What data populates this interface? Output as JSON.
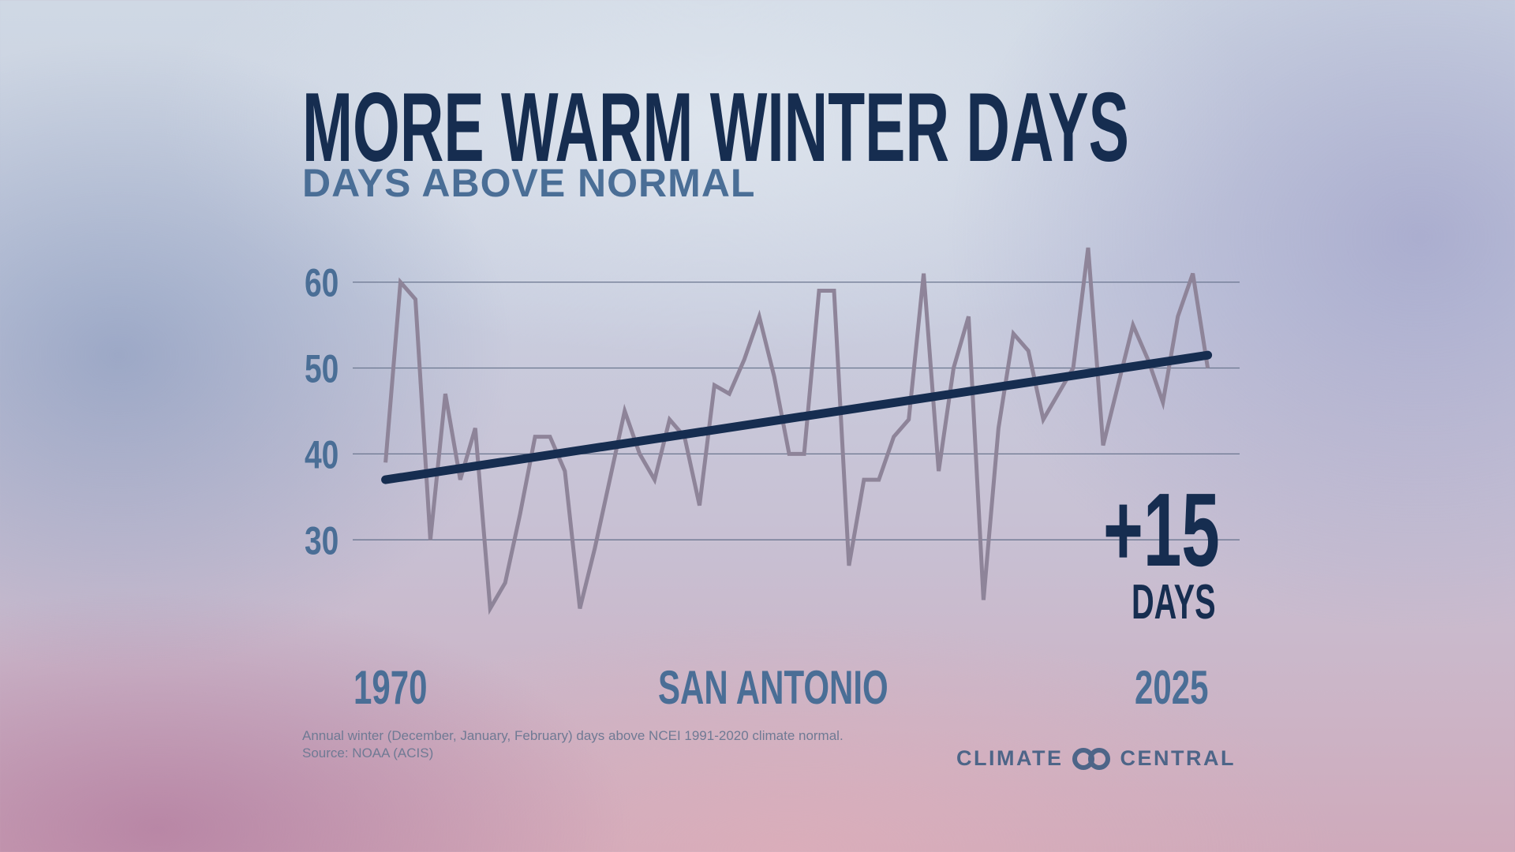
{
  "header": {
    "title": "MORE WARM WINTER DAYS",
    "subtitle": "DAYS ABOVE NORMAL"
  },
  "chart_data": {
    "type": "line",
    "title": "MORE WARM WINTER DAYS",
    "subtitle": "DAYS ABOVE NORMAL",
    "location": "SAN ANTONIO",
    "xlabel": "",
    "ylabel": "",
    "x_start_label": "1970",
    "x_end_label": "2025",
    "ylim": [
      20,
      65
    ],
    "yticks": [
      30,
      40,
      50,
      60
    ],
    "grid": true,
    "x": [
      1970,
      1971,
      1972,
      1973,
      1974,
      1975,
      1976,
      1977,
      1978,
      1979,
      1980,
      1981,
      1982,
      1983,
      1984,
      1985,
      1986,
      1987,
      1988,
      1989,
      1990,
      1991,
      1992,
      1993,
      1994,
      1995,
      1996,
      1997,
      1998,
      1999,
      2000,
      2001,
      2002,
      2003,
      2004,
      2005,
      2006,
      2007,
      2008,
      2009,
      2010,
      2011,
      2012,
      2013,
      2014,
      2015,
      2016,
      2017,
      2018,
      2019,
      2020,
      2021,
      2022,
      2023,
      2024,
      2025
    ],
    "series": [
      {
        "name": "Days above normal",
        "color": "#8e8499",
        "values": [
          39,
          60,
          58,
          30,
          47,
          37,
          43,
          22,
          25,
          33,
          42,
          42,
          38,
          22,
          29,
          37,
          45,
          40,
          37,
          44,
          42,
          34,
          48,
          47,
          51,
          56,
          49,
          40,
          40,
          59,
          59,
          27,
          37,
          37,
          42,
          44,
          61,
          38,
          50,
          56,
          23,
          43,
          54,
          52,
          44,
          47,
          50,
          64,
          41,
          48,
          55,
          51,
          46,
          56,
          61,
          50
        ]
      },
      {
        "name": "Trend",
        "color": "#162d50",
        "start": 37,
        "end": 51.5
      }
    ],
    "annotation": {
      "value": "+15",
      "unit": "DAYS"
    }
  },
  "footer": {
    "note": "Annual winter (December, January, February) days above NCEI 1991-2020 climate normal.",
    "source": "Source: NOAA (ACIS)",
    "logo_left": "CLIMATE",
    "logo_right": "CENTRAL"
  }
}
